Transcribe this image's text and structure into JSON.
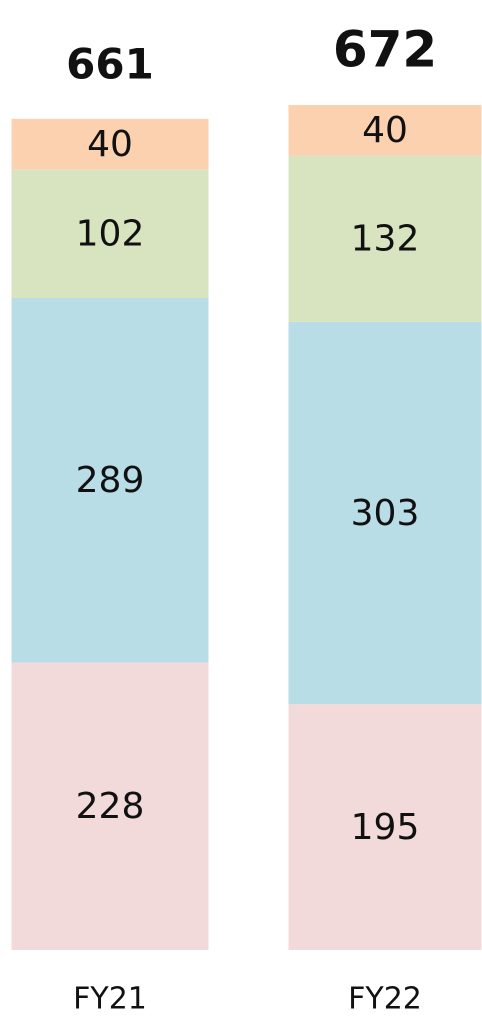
{
  "chart_data": {
    "type": "stacked_bar",
    "categories": [
      "FY21",
      "FY22"
    ],
    "totals": [
      661,
      672
    ],
    "series": [
      {
        "color": "#f2dadb",
        "values": [
          228,
          195
        ]
      },
      {
        "color": "#b8dde7",
        "values": [
          289,
          303
        ]
      },
      {
        "color": "#d8e4bf",
        "values": [
          102,
          132
        ]
      },
      {
        "color": "#fbd1b0",
        "values": [
          40,
          40
        ]
      }
    ],
    "ylim": [
      0,
      670
    ]
  }
}
